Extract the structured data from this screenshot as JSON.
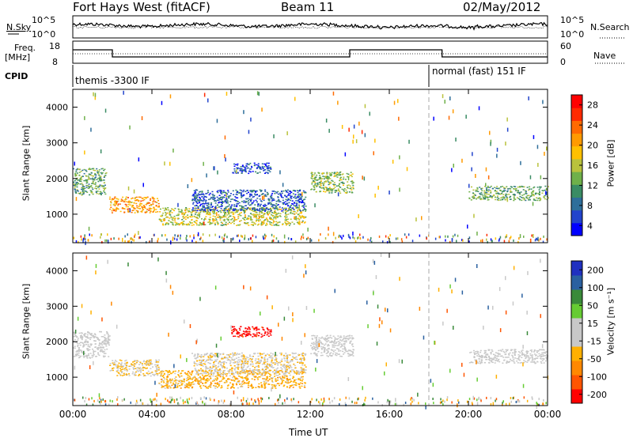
{
  "header": {
    "station": "Fort Hays West (fitACF)",
    "beam": "Beam 11",
    "date": "02/May/2012"
  },
  "panels": {
    "nsky": {
      "left_label": "N.Sky",
      "right_label": "N.Search",
      "left_ticks": [
        "10^5",
        "10^0"
      ],
      "right_ticks": [
        "10^5",
        "10^0"
      ]
    },
    "freq": {
      "left_label": "Freq.",
      "left_unit": "[MHz]",
      "left_ticks": [
        "18",
        "8"
      ],
      "right_label": "Nave",
      "right_ticks": [
        "60",
        "0"
      ]
    },
    "cpid": {
      "label": "CPID",
      "segments": [
        "themis -3300 IF",
        "normal (fast) 151 IF"
      ]
    }
  },
  "axes": {
    "xlabel": "Time UT",
    "x_ticks": [
      "00:00",
      "04:00",
      "08:00",
      "12:00",
      "16:00",
      "20:00",
      "00:00"
    ],
    "ylabel": "Slant Range [km]",
    "y_ticks": [
      "1000",
      "2000",
      "3000",
      "4000"
    ]
  },
  "colorbars": {
    "power": {
      "label": "Power [dB]",
      "ticks": [
        "28",
        "24",
        "20",
        "16",
        "12",
        "8",
        "4"
      ],
      "colors": [
        "#0000ff",
        "#2244cc",
        "#2e6e9a",
        "#3a8c64",
        "#6fb04a",
        "#b9c23c",
        "#ffc000",
        "#ff9a00",
        "#ff6a00",
        "#ff2a00",
        "#ff0000"
      ]
    },
    "velocity": {
      "label": "Velocity [m s⁻¹]",
      "ticks": [
        "200",
        "100",
        "50",
        "15",
        "-15",
        "-50",
        "-100",
        "-200"
      ],
      "colors": [
        "#2030c0",
        "#2a60a0",
        "#3a8a3a",
        "#66cc33",
        "#c8c8c8",
        "#c8c8c8",
        "#ffb000",
        "#ff8800",
        "#ff5500",
        "#ff0000"
      ]
    }
  },
  "chart_data": [
    {
      "type": "heatmap",
      "title": "Power",
      "xlabel": "Time UT",
      "ylabel": "Slant Range [km]",
      "xlim": [
        "00:00",
        "24:00"
      ],
      "ylim": [
        200,
        4500
      ],
      "color_scale": {
        "label": "Power [dB]",
        "range": [
          0,
          32
        ]
      },
      "features": [
        {
          "time_start": "00:00",
          "time_end": "01:40",
          "range_low_km": 1550,
          "range_high_km": 2300,
          "power_db": 12
        },
        {
          "time_start": "01:50",
          "time_end": "04:20",
          "range_low_km": 1050,
          "range_high_km": 1500,
          "power_db": 22
        },
        {
          "time_start": "04:20",
          "time_end": "11:45",
          "range_low_km": 700,
          "range_high_km": 1200,
          "power_db": 16
        },
        {
          "time_start": "06:00",
          "time_end": "11:45",
          "range_low_km": 1100,
          "range_high_km": 1700,
          "power_db": 6
        },
        {
          "time_start": "08:00",
          "time_end": "10:00",
          "range_low_km": 2150,
          "range_high_km": 2450,
          "power_db": 5
        },
        {
          "time_start": "12:00",
          "time_end": "14:10",
          "range_low_km": 1600,
          "range_high_km": 2200,
          "power_db": 14
        },
        {
          "time_start": "20:00",
          "time_end": "24:00",
          "range_low_km": 1400,
          "range_high_km": 1800,
          "power_db": 12
        }
      ]
    },
    {
      "type": "heatmap",
      "title": "Velocity",
      "xlabel": "Time UT",
      "ylabel": "Slant Range [km]",
      "xlim": [
        "00:00",
        "24:00"
      ],
      "ylim": [
        200,
        4500
      ],
      "color_scale": {
        "label": "Velocity [m s⁻¹]",
        "range": [
          -200,
          200
        ]
      },
      "features": [
        {
          "time_start": "00:00",
          "time_end": "01:50",
          "range_low_km": 1550,
          "range_high_km": 2300,
          "velocity": -10
        },
        {
          "time_start": "01:50",
          "time_end": "04:20",
          "range_low_km": 1050,
          "range_high_km": 1500,
          "velocity": -40
        },
        {
          "time_start": "04:20",
          "time_end": "11:45",
          "range_low_km": 700,
          "range_high_km": 1200,
          "velocity": -60
        },
        {
          "time_start": "06:00",
          "time_end": "11:45",
          "range_low_km": 1100,
          "range_high_km": 1700,
          "velocity": -30
        },
        {
          "time_start": "08:00",
          "time_end": "10:00",
          "range_low_km": 2150,
          "range_high_km": 2450,
          "velocity": -180
        },
        {
          "time_start": "12:00",
          "time_end": "14:10",
          "range_low_km": 1600,
          "range_high_km": 2200,
          "velocity": -10
        },
        {
          "time_start": "20:00",
          "time_end": "24:00",
          "range_low_km": 1400,
          "range_high_km": 1800,
          "velocity": -10
        }
      ]
    }
  ]
}
